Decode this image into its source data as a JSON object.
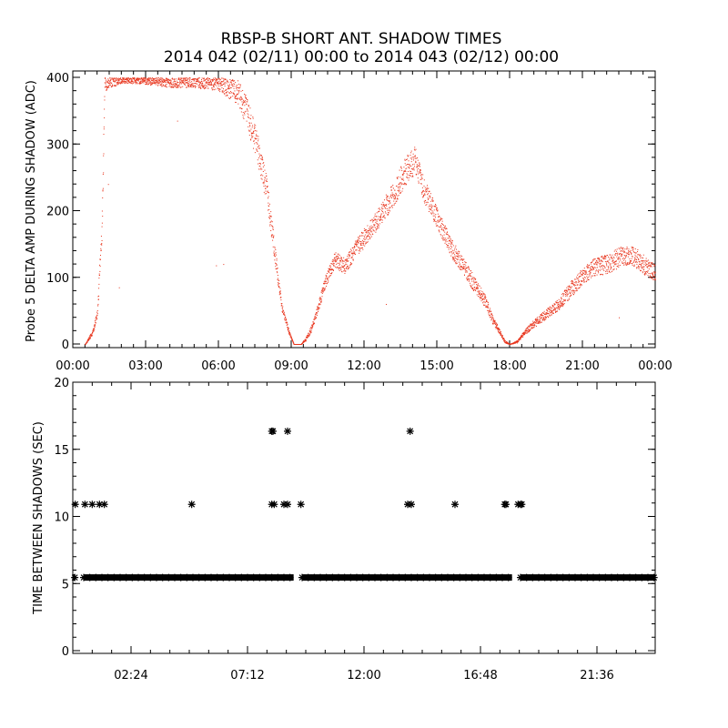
{
  "title_line1": "RBSP-B SHORT ANT. SHADOW TIMES",
  "title_line2": "2014 042 (02/11) 00:00 to 2014 043 (02/12) 00:00",
  "chart_data": [
    {
      "type": "scatter",
      "ylabel": "Probe 5 DELTA AMP DURING SHADOW (ADC)",
      "xlabel": "",
      "xlim": [
        0,
        24
      ],
      "ylim": [
        0,
        400
      ],
      "color": "#e8341c",
      "x_tick_labels": [
        "00:00",
        "03:00",
        "06:00",
        "09:00",
        "12:00",
        "15:00",
        "18:00",
        "21:00",
        "00:00"
      ],
      "y_tick_labels": [
        "0",
        "100",
        "200",
        "300",
        "400"
      ],
      "envelope": {
        "name": "delta amp",
        "x": [
          0.5,
          0.8,
          1.0,
          1.2,
          1.3,
          2.0,
          3.0,
          4.0,
          5.0,
          6.0,
          6.8,
          7.2,
          7.6,
          8.0,
          8.3,
          8.6,
          8.9,
          9.1,
          9.4,
          9.6,
          9.8,
          10.1,
          10.4,
          10.8,
          11.2,
          11.6,
          12.0,
          12.5,
          13.0,
          13.5,
          13.8,
          14.1,
          14.5,
          15.0,
          15.5,
          16.0,
          16.5,
          17.0,
          17.3,
          17.6,
          17.8,
          18.0,
          18.3,
          18.6,
          19.0,
          19.5,
          20.0,
          20.5,
          21.0,
          21.5,
          22.0,
          22.5,
          23.0,
          23.5,
          24.0
        ],
        "y": [
          0,
          20,
          50,
          200,
          400,
          400,
          400,
          400,
          400,
          400,
          390,
          360,
          310,
          240,
          150,
          60,
          20,
          0,
          0,
          10,
          25,
          60,
          100,
          135,
          125,
          150,
          170,
          195,
          225,
          260,
          280,
          290,
          240,
          200,
          160,
          130,
          100,
          70,
          40,
          20,
          5,
          0,
          5,
          20,
          35,
          50,
          65,
          90,
          110,
          125,
          130,
          140,
          145,
          130,
          115
        ],
        "band": [
          0,
          8,
          10,
          40,
          20,
          8,
          10,
          15,
          15,
          20,
          30,
          40,
          40,
          35,
          25,
          10,
          5,
          0,
          0,
          5,
          8,
          12,
          15,
          20,
          20,
          22,
          25,
          25,
          30,
          35,
          35,
          35,
          30,
          25,
          25,
          22,
          20,
          15,
          10,
          6,
          3,
          0,
          3,
          6,
          10,
          12,
          15,
          20,
          20,
          22,
          25,
          25,
          25,
          25,
          20
        ]
      }
    },
    {
      "type": "scatter",
      "ylabel": "TIME BETWEEN SHADOWS (SEC)",
      "xlabel": "",
      "xlim": [
        0,
        24
      ],
      "ylim": [
        0,
        20
      ],
      "color": "#000000",
      "marker": "*",
      "x_tick_labels": [
        "02:24",
        "07:12",
        "12:00",
        "16:48",
        "21:36"
      ],
      "x_tick_values": [
        2.4,
        7.2,
        12.0,
        16.8,
        21.6
      ],
      "y_tick_labels": [
        "0",
        "5",
        "10",
        "15",
        "20"
      ],
      "baseline": {
        "value": 5.45,
        "gaps": [
          [
            0.1,
            0.45
          ],
          [
            9.1,
            9.45
          ],
          [
            18.1,
            18.45
          ]
        ]
      },
      "points_11s": [
        0.1,
        0.5,
        0.8,
        1.1,
        1.3,
        4.9,
        8.2,
        8.3,
        8.7,
        8.85,
        9.4,
        13.8,
        13.95,
        15.75,
        17.8,
        17.85,
        18.35,
        18.45,
        18.5
      ],
      "points_16s": [
        8.2,
        8.25,
        8.85,
        13.9
      ]
    }
  ]
}
